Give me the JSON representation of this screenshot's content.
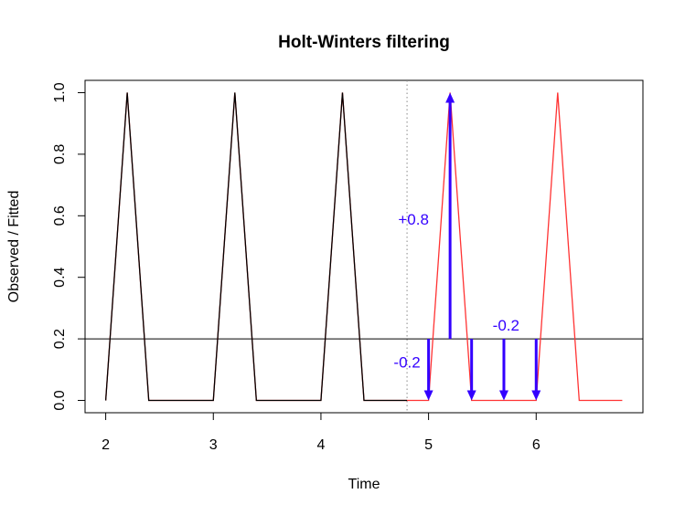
{
  "chart_data": {
    "type": "line",
    "title": "Holt-Winters filtering",
    "xlabel": "Time",
    "ylabel": "Observed / Fitted",
    "x": [
      2,
      2.2,
      2.4,
      2.6,
      2.8,
      3,
      3.2,
      3.4,
      3.6,
      3.8,
      4,
      4.2,
      4.4,
      4.6,
      4.8,
      5,
      5.2,
      5.4,
      5.6,
      5.8,
      6,
      6.2,
      6.4,
      6.6,
      6.8
    ],
    "series": [
      {
        "color": "#ff3333",
        "values": [
          0,
          1,
          0,
          0,
          0,
          0,
          1,
          0,
          0,
          0,
          0,
          1,
          0,
          0,
          0,
          0,
          1,
          0,
          0,
          0,
          0,
          1,
          0,
          0,
          0
        ]
      },
      {
        "color": "#000000",
        "values": [
          0,
          1,
          0,
          0,
          0,
          0,
          1,
          0,
          0,
          0,
          0,
          1,
          0,
          0,
          0,
          null,
          null,
          null,
          null,
          null,
          null,
          null,
          null,
          null,
          null
        ]
      }
    ],
    "xlim": [
      1.808,
      6.992
    ],
    "ylim": [
      -0.04,
      1.04
    ],
    "xticks": [
      2,
      3,
      4,
      5,
      6
    ],
    "yticks": [
      {
        "value": 0,
        "label": "0.0"
      },
      {
        "value": 0.2,
        "label": "0.2"
      },
      {
        "value": 0.4,
        "label": "0.4"
      },
      {
        "value": 0.6,
        "label": "0.6"
      },
      {
        "value": 0.8,
        "label": "0.8"
      },
      {
        "value": 1,
        "label": "1.0"
      }
    ],
    "hline": 0.2,
    "vline": 4.8,
    "arrow_color": "#3300ff",
    "arrows": [
      {
        "x": 5,
        "from": 0.2,
        "to": 0
      },
      {
        "x": 5.2,
        "from": 0.2,
        "to": 1
      },
      {
        "x": 5.4,
        "from": 0.2,
        "to": 0
      },
      {
        "x": 5.7,
        "from": 0.2,
        "to": 0
      },
      {
        "x": 6,
        "from": 0.2,
        "to": 0
      }
    ],
    "annotations": [
      {
        "text": "+0.8",
        "x": 4.86,
        "y": 0.585
      },
      {
        "text": "-0.2",
        "x": 4.8,
        "y": 0.12
      },
      {
        "text": "-0.2",
        "x": 5.72,
        "y": 0.24
      }
    ]
  }
}
